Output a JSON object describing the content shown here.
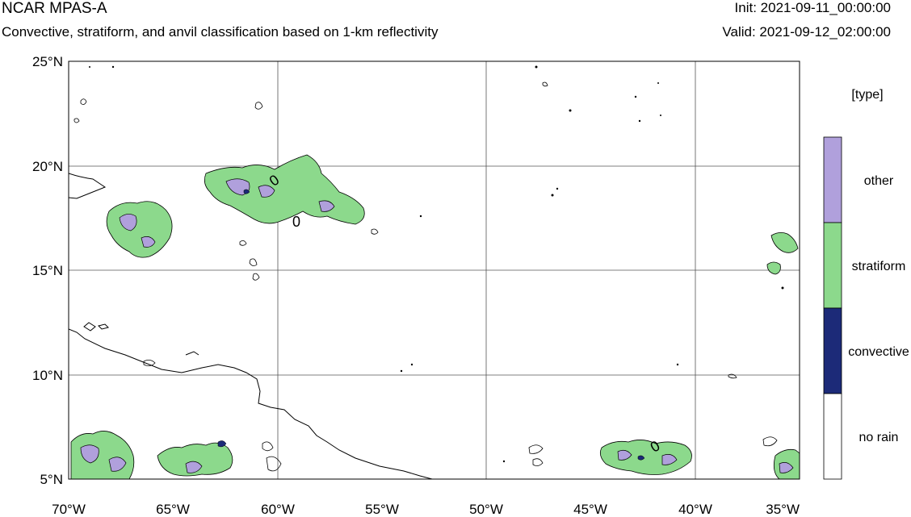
{
  "header": {
    "title": "NCAR MPAS-A",
    "subtitle": "Convective, stratiform, and anvil classification based on 1-km reflectivity",
    "init": "Init: 2021-09-11_00:00:00",
    "valid": "Valid: 2021-09-12_02:00:00"
  },
  "map": {
    "lat_labels": [
      "25°N",
      "20°N",
      "15°N",
      "10°N",
      "5°N"
    ],
    "lon_labels": [
      "70°W",
      "65°W",
      "60°W",
      "55°W",
      "50°W",
      "45°W",
      "40°W",
      "35°W"
    ],
    "lat_range": [
      5,
      25
    ],
    "lon_range": [
      -70,
      -35
    ],
    "contour_labels": [
      "0",
      "0",
      "0"
    ]
  },
  "legend": {
    "title": "[type]",
    "items": [
      {
        "label": "other",
        "color": "#b0a0dc"
      },
      {
        "label": "stratiform",
        "color": "#8cd98c"
      },
      {
        "label": "convective",
        "color": "#1c2a78"
      },
      {
        "label": "no rain",
        "color": "#ffffff"
      }
    ]
  }
}
